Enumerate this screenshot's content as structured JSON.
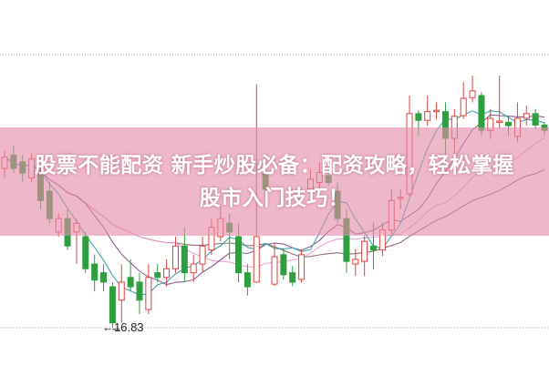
{
  "banner": {
    "line1": "股票不能配资 新手炒股必备：配资攻略，轻松掌握",
    "line2": "股市入门技巧！"
  },
  "colors": {
    "up": "#e0403c",
    "down": "#2e9e3e",
    "ma5": "#3aa6a6",
    "ma10": "#8b5c92",
    "ma20": "#e9a2d6",
    "ma60": "#8c6e6e",
    "grid": "#9a9a9a",
    "banner": "#e48caa"
  },
  "chart_data": {
    "type": "candlestick",
    "title": "",
    "xlabel": "",
    "ylabel": "",
    "ylim": [
      16.27,
      21.73
    ],
    "grid": true,
    "annotations": [
      {
        "text": "←16.83",
        "value": 16.83
      }
    ],
    "moving_averages": [
      "ma5",
      "ma10",
      "ma20",
      "ma60"
    ],
    "candles_ohlc": [
      [
        19.21,
        19.38,
        19.48,
        19.07
      ],
      [
        19.41,
        19.21,
        19.55,
        19.14
      ],
      [
        19.31,
        19.14,
        19.41,
        19.01
      ],
      [
        19.07,
        19.35,
        19.44,
        19.01
      ],
      [
        19.14,
        18.73,
        19.28,
        18.6
      ],
      [
        18.87,
        18.46,
        19.01,
        18.39
      ],
      [
        18.26,
        18.46,
        18.53,
        18.19
      ],
      [
        18.46,
        18.05,
        18.6,
        17.99
      ],
      [
        18.26,
        18.39,
        18.46,
        17.78
      ],
      [
        18.19,
        17.71,
        18.26,
        17.65
      ],
      [
        17.78,
        17.54,
        17.92,
        17.37
      ],
      [
        17.65,
        17.51,
        17.78,
        17.37
      ],
      [
        17.44,
        16.9,
        17.51,
        16.83
      ],
      [
        17.24,
        17.51,
        17.78,
        16.9
      ],
      [
        17.58,
        17.44,
        17.85,
        17.37
      ],
      [
        17.51,
        17.24,
        17.65,
        17.03
      ],
      [
        17.1,
        17.58,
        17.78,
        17.03
      ],
      [
        17.65,
        17.58,
        17.78,
        17.51
      ],
      [
        17.58,
        17.71,
        17.85,
        17.44
      ],
      [
        17.71,
        18.05,
        18.19,
        17.65
      ],
      [
        18.05,
        17.65,
        18.33,
        17.51
      ],
      [
        17.65,
        17.78,
        17.92,
        17.51
      ],
      [
        17.78,
        18.05,
        18.19,
        17.65
      ],
      [
        17.99,
        18.33,
        18.46,
        17.92
      ],
      [
        18.19,
        18.46,
        18.67,
        18.12
      ],
      [
        18.39,
        18.26,
        18.53,
        17.85
      ],
      [
        18.19,
        17.65,
        18.39,
        17.51
      ],
      [
        17.65,
        17.44,
        17.78,
        17.31
      ],
      [
        17.51,
        18.19,
        20.47,
        17.51
      ],
      [
        19.14,
        18.9,
        19.2,
        18.8
      ],
      [
        17.48,
        17.89,
        18.1,
        17.45
      ],
      [
        17.92,
        17.62,
        18.0,
        17.55
      ],
      [
        17.65,
        17.51,
        17.75,
        17.45
      ],
      [
        17.55,
        17.92,
        18.0,
        17.5
      ],
      [
        18.9,
        19.05,
        19.2,
        18.85
      ],
      [
        19.0,
        19.15,
        19.3,
        18.9
      ],
      [
        19.1,
        19.0,
        19.2,
        18.95
      ],
      [
        18.87,
        18.46,
        19.0,
        18.4
      ],
      [
        18.46,
        17.82,
        18.6,
        17.65
      ],
      [
        17.78,
        17.85,
        18.0,
        17.6
      ],
      [
        17.82,
        18.12,
        18.2,
        17.6
      ],
      [
        18.05,
        17.99,
        18.4,
        17.7
      ],
      [
        17.99,
        18.29,
        18.4,
        17.9
      ],
      [
        18.29,
        18.73,
        18.9,
        18.2
      ],
      [
        18.76,
        18.78,
        18.9,
        18.6
      ],
      [
        18.83,
        20.03,
        20.3,
        18.8
      ],
      [
        20.03,
        19.93,
        20.08,
        19.7
      ],
      [
        19.93,
        20.06,
        20.3,
        19.85
      ],
      [
        20.06,
        20.08,
        20.2,
        19.95
      ],
      [
        20.06,
        19.66,
        20.2,
        19.3
      ],
      [
        19.66,
        19.99,
        20.1,
        19.4
      ],
      [
        20.0,
        20.26,
        20.5,
        19.95
      ],
      [
        20.27,
        20.37,
        20.6,
        20.2
      ],
      [
        20.3,
        19.78,
        20.35,
        19.7
      ],
      [
        19.78,
        19.96,
        20.1,
        19.65
      ],
      [
        19.9,
        19.92,
        20.6,
        19.8
      ],
      [
        19.9,
        19.85,
        20.0,
        19.7
      ],
      [
        19.69,
        19.96,
        20.2,
        19.6
      ],
      [
        19.96,
        20.03,
        20.15,
        19.85
      ],
      [
        20.03,
        19.86,
        20.1,
        19.8
      ],
      [
        19.86,
        19.78,
        19.9,
        19.7
      ]
    ]
  }
}
